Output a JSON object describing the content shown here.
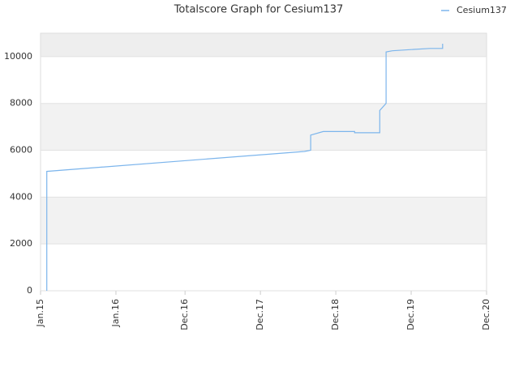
{
  "chart_data": {
    "type": "line",
    "title": "Totalscore Graph for Cesium137",
    "x": [
      "2015-02",
      "2015-02",
      "2015-02",
      "2018-07",
      "2018-08",
      "2018-08",
      "2018-08",
      "2018-10",
      "2019-03",
      "2019-03",
      "2019-07",
      "2019-07",
      "2019-08",
      "2019-08",
      "2019-08",
      "2019-09",
      "2019-12",
      "2020-03",
      "2020-05",
      "2020-05"
    ],
    "series": [
      {
        "name": "Cesium137",
        "color": "#7cb5ec",
        "values": [
          0,
          4800,
          5100,
          5950,
          6000,
          6300,
          6650,
          6800,
          6800,
          6750,
          6750,
          7700,
          8000,
          10000,
          10200,
          10250,
          10300,
          10350,
          10350,
          10550
        ]
      }
    ],
    "xlim": [
      "2015-01",
      "2020-12"
    ],
    "xticks": [
      {
        "value": "2015-01",
        "label": "Jan.15"
      },
      {
        "value": "2016-01",
        "label": "Jan.16"
      },
      {
        "value": "2016-12",
        "label": "Dec.16"
      },
      {
        "value": "2017-12",
        "label": "Dec.17"
      },
      {
        "value": "2018-12",
        "label": "Dec.18"
      },
      {
        "value": "2019-12",
        "label": "Dec.19"
      },
      {
        "value": "2020-12",
        "label": "Dec.20"
      }
    ],
    "ylim": [
      0,
      11000
    ],
    "yticks": [
      0,
      2000,
      4000,
      6000,
      8000,
      10000
    ],
    "grid": true,
    "legend": "top-right"
  }
}
